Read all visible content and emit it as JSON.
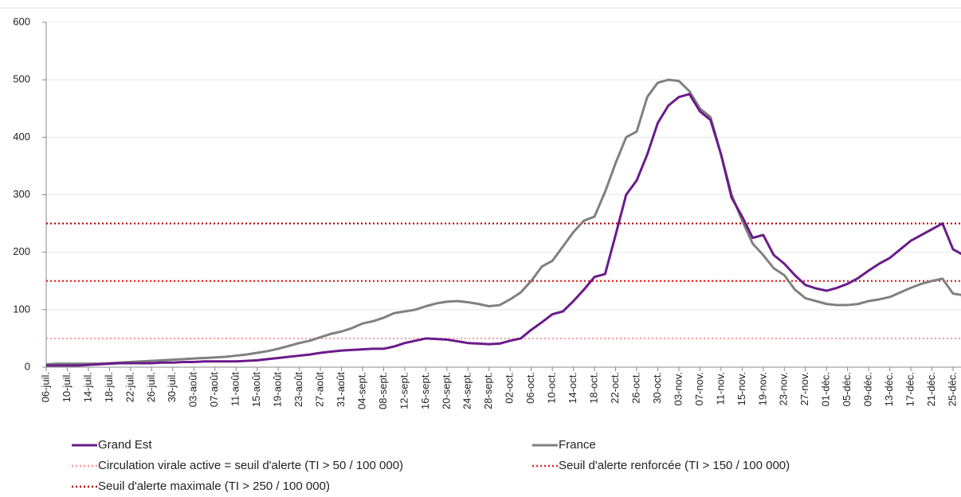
{
  "chart_data": {
    "type": "line",
    "categories": [
      "06-juil.",
      null,
      "10-juil.",
      null,
      "14-juil.",
      null,
      "18-juil.",
      null,
      "22-juil.",
      null,
      "26-juil.",
      null,
      "30-juil.",
      null,
      "03-août",
      null,
      "07-août",
      null,
      "11-août",
      null,
      "15-août",
      null,
      "19-août",
      null,
      "23-août",
      null,
      "27-août",
      null,
      "31-août",
      null,
      "04-sept.",
      null,
      "08-sept.",
      null,
      "12-sept.",
      null,
      "16-sept.",
      null,
      "20-sept.",
      null,
      "24-sept.",
      null,
      "28-sept.",
      null,
      "02-oct.",
      null,
      "06-oct.",
      null,
      "10-oct.",
      null,
      "14-oct.",
      null,
      "18-oct.",
      null,
      "22-oct.",
      null,
      "26-oct.",
      null,
      "30-oct.",
      null,
      "03-nov.",
      null,
      "07-nov.",
      null,
      "11-nov.",
      null,
      "15-nov.",
      null,
      "19-nov.",
      null,
      "23-nov.",
      null,
      "27-nov.",
      null,
      "01-déc.",
      null,
      "05-déc.",
      null,
      "09-déc.",
      null,
      "13-déc.",
      null,
      "17-déc.",
      null,
      "21-déc.",
      null,
      "25-déc.",
      null
    ],
    "series": [
      {
        "name": "Grand Est",
        "color": "#6a1b8a",
        "values": [
          3,
          3,
          3,
          3,
          4,
          5,
          6,
          7,
          7,
          7,
          7,
          8,
          8,
          9,
          9,
          10,
          10,
          10,
          10,
          11,
          12,
          14,
          16,
          18,
          20,
          22,
          25,
          27,
          29,
          30,
          31,
          32,
          32,
          36,
          42,
          46,
          50,
          49,
          48,
          45,
          42,
          41,
          40,
          41,
          46,
          50,
          65,
          78,
          92,
          97,
          115,
          135,
          157,
          162,
          230,
          300,
          325,
          370,
          425,
          455,
          470,
          475,
          445,
          430,
          370,
          295,
          262,
          225,
          230,
          195,
          180,
          160,
          143,
          137,
          133,
          138,
          145,
          155,
          168,
          180,
          190,
          205,
          220,
          230,
          240,
          250,
          205,
          195
        ]
      },
      {
        "name": "France",
        "color": "#808080",
        "values": [
          5,
          6,
          6,
          6,
          6,
          6,
          7,
          8,
          9,
          10,
          11,
          12,
          13,
          14,
          15,
          16,
          17,
          18,
          20,
          22,
          25,
          28,
          32,
          37,
          42,
          46,
          52,
          58,
          62,
          68,
          76,
          80,
          86,
          94,
          97,
          100,
          106,
          111,
          114,
          115,
          113,
          110,
          106,
          108,
          118,
          130,
          150,
          175,
          185,
          210,
          235,
          255,
          262,
          305,
          355,
          400,
          410,
          470,
          495,
          500,
          498,
          480,
          450,
          435,
          370,
          300,
          255,
          215,
          195,
          172,
          160,
          135,
          120,
          115,
          110,
          108,
          108,
          110,
          115,
          118,
          122,
          130,
          138,
          145,
          150,
          154,
          128,
          125
        ]
      }
    ],
    "reference_lines": [
      {
        "name": "Circulation virale active = seuil d'alerte (TI > 50 / 100 000)",
        "value": 50,
        "color": "#f4a0a0"
      },
      {
        "name": "Seuil d'alerte renforcée (TI > 150 / 100 000)",
        "value": 150,
        "color": "#e02020"
      },
      {
        "name": "Seuil d'alerte maximale (TI > 250 / 100 000)",
        "value": 250,
        "color": "#b00000"
      }
    ],
    "ylim": [
      0,
      600
    ],
    "yticks": [
      0,
      100,
      200,
      300,
      400,
      500,
      600
    ],
    "grid": true
  }
}
